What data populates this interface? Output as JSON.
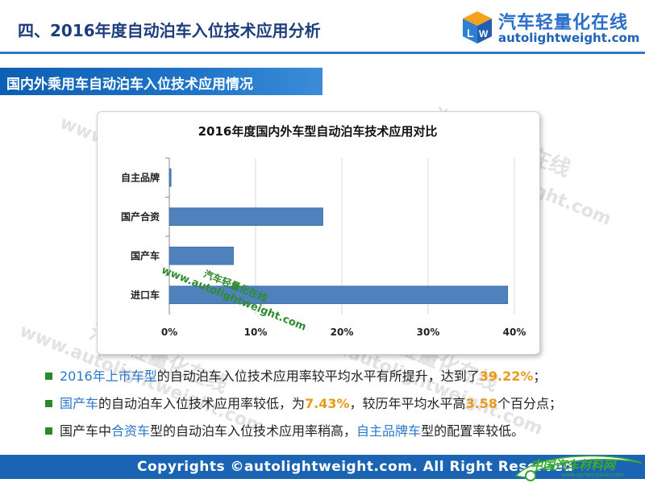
{
  "slide": {
    "title": "四、2016年度自动泊车入位技术应用分析",
    "section_title": "国内外乘用车自动泊车入位技术应用情况"
  },
  "logo": {
    "cn": "汽车轻量化在线",
    "url": "autolightweight.com"
  },
  "chart_data": {
    "type": "bar",
    "orientation": "horizontal",
    "title": "2016年度国内外车型自动泊车技术应用对比",
    "categories": [
      "自主品牌",
      "国产合资",
      "国产车",
      "进口车"
    ],
    "values": [
      0.2,
      17.8,
      7.43,
      39.22
    ],
    "x_ticks": [
      "0%",
      "10%",
      "20%",
      "30%",
      "40%"
    ],
    "xlim": [
      0,
      40
    ],
    "grid": true,
    "bar_color": "#4f81bd"
  },
  "watermarks": {
    "cn": "汽车轻量化在线",
    "url": "www.autolightweight.com",
    "green_cn": "汽车轻量化在线",
    "green_url": "www.autolightweight.com"
  },
  "bullets": [
    {
      "parts": [
        {
          "text": "2016年上市车型",
          "style": "blue"
        },
        {
          "text": "的自动泊车入位技术应用率较平均水平有所提升，达到了",
          "style": "normal"
        },
        {
          "text": "39.22%",
          "style": "orange"
        },
        {
          "text": "；",
          "style": "normal"
        }
      ]
    },
    {
      "parts": [
        {
          "text": "国产车",
          "style": "blue"
        },
        {
          "text": "的自动泊车入位技术应用率较低，为",
          "style": "normal"
        },
        {
          "text": "7.43%",
          "style": "orange"
        },
        {
          "text": "，较历年平均水平高",
          "style": "normal"
        },
        {
          "text": "3.58",
          "style": "orange"
        },
        {
          "text": "个百分点；",
          "style": "normal"
        }
      ]
    },
    {
      "parts": [
        {
          "text": "国产车中",
          "style": "normal"
        },
        {
          "text": "合资车",
          "style": "blue"
        },
        {
          "text": "型的自动泊车入位技术应用率稍高，",
          "style": "normal"
        },
        {
          "text": "自主品牌车",
          "style": "blue"
        },
        {
          "text": "型的配置率较低。",
          "style": "normal"
        }
      ]
    }
  ],
  "footer": {
    "text": "Copyrights ©autolightweight.com. All Right Reserved",
    "partner_logo": "中国汽车材料网",
    "partner_url": "www.qichecailiao.com"
  }
}
